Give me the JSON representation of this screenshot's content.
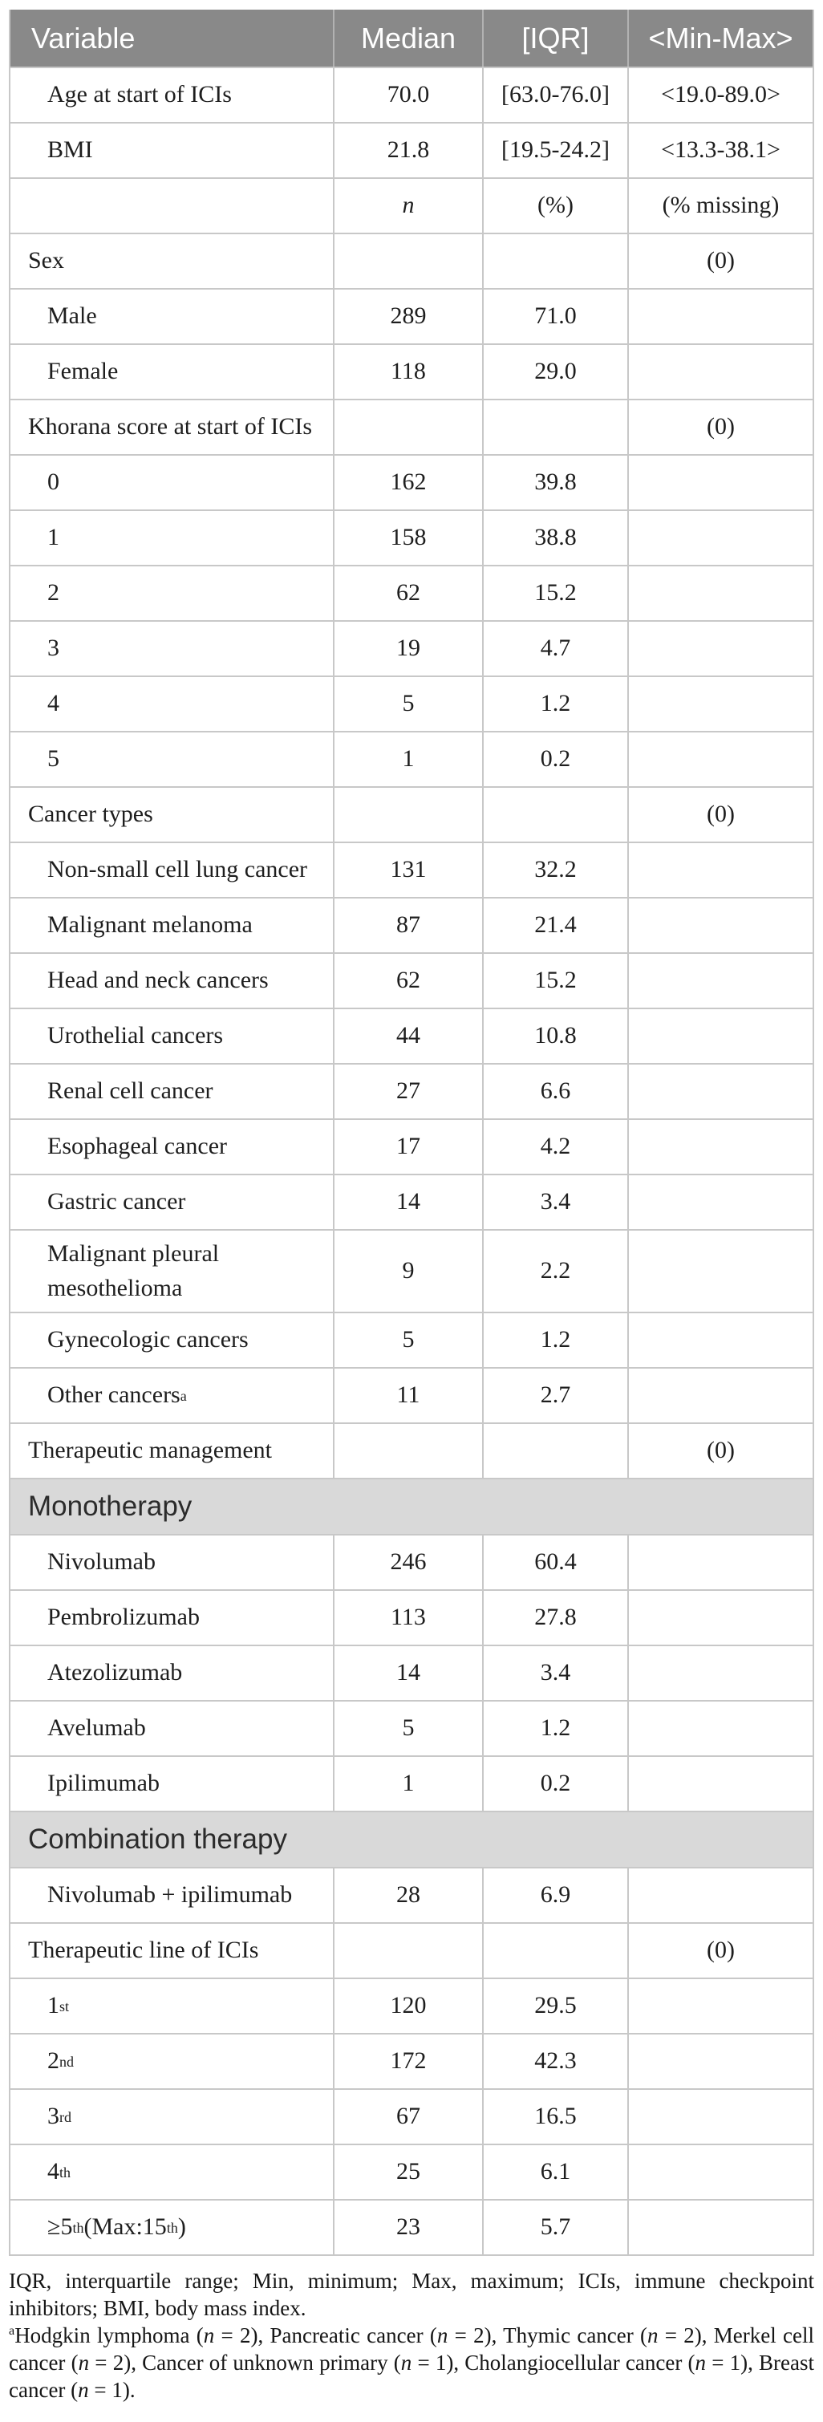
{
  "colors": {
    "header_bg": "#898989",
    "header_text": "#ffffff",
    "banner_bg": "#d9d9d9",
    "grid_line": "#c8c8c8",
    "body_text": "#1e1e1e"
  },
  "header": {
    "variable": "Variable",
    "median": "Median",
    "iqr": "[IQR]",
    "minmax": "<Min-Max>"
  },
  "table": {
    "rows": [
      {
        "indent": 2,
        "label": [
          {
            "t": "Age at start of ICIs"
          }
        ],
        "c2": "70.0",
        "c3": "[63.0-76.0]",
        "c4": "<19.0-89.0>"
      },
      {
        "indent": 2,
        "label": [
          {
            "t": "BMI"
          }
        ],
        "c2": "21.8",
        "c3": "[19.5-24.2]",
        "c4": "<13.3-38.1>"
      },
      {
        "indent": 2,
        "italic": true,
        "label": [],
        "c2": "n",
        "c3": "(%)",
        "c4": "(% missing)"
      },
      {
        "indent": 1,
        "label": [
          {
            "t": "Sex"
          }
        ],
        "c2": "",
        "c3": "",
        "c4": "(0)"
      },
      {
        "indent": 2,
        "label": [
          {
            "t": "Male"
          }
        ],
        "c2": "289",
        "c3": "71.0",
        "c4": ""
      },
      {
        "indent": 2,
        "label": [
          {
            "t": "Female"
          }
        ],
        "c2": "118",
        "c3": "29.0",
        "c4": ""
      },
      {
        "indent": 1,
        "label": [
          {
            "t": "Khorana score at start of ICIs"
          }
        ],
        "c2": "",
        "c3": "",
        "c4": "(0)"
      },
      {
        "indent": 2,
        "label": [
          {
            "t": "0"
          }
        ],
        "c2": "162",
        "c3": "39.8",
        "c4": ""
      },
      {
        "indent": 2,
        "label": [
          {
            "t": "1"
          }
        ],
        "c2": "158",
        "c3": "38.8",
        "c4": ""
      },
      {
        "indent": 2,
        "label": [
          {
            "t": "2"
          }
        ],
        "c2": "62",
        "c3": "15.2",
        "c4": ""
      },
      {
        "indent": 2,
        "label": [
          {
            "t": "3"
          }
        ],
        "c2": "19",
        "c3": "4.7",
        "c4": ""
      },
      {
        "indent": 2,
        "label": [
          {
            "t": "4"
          }
        ],
        "c2": "5",
        "c3": "1.2",
        "c4": ""
      },
      {
        "indent": 2,
        "label": [
          {
            "t": "5"
          }
        ],
        "c2": "1",
        "c3": "0.2",
        "c4": ""
      },
      {
        "indent": 1,
        "label": [
          {
            "t": "Cancer types"
          }
        ],
        "c2": "",
        "c3": "",
        "c4": "(0)"
      },
      {
        "indent": 2,
        "label": [
          {
            "t": "Non-small cell lung cancer"
          }
        ],
        "c2": "131",
        "c3": "32.2",
        "c4": ""
      },
      {
        "indent": 2,
        "label": [
          {
            "t": "Malignant melanoma"
          }
        ],
        "c2": "87",
        "c3": "21.4",
        "c4": ""
      },
      {
        "indent": 2,
        "label": [
          {
            "t": "Head and neck cancers"
          }
        ],
        "c2": "62",
        "c3": "15.2",
        "c4": ""
      },
      {
        "indent": 2,
        "label": [
          {
            "t": "Urothelial cancers"
          }
        ],
        "c2": "44",
        "c3": "10.8",
        "c4": ""
      },
      {
        "indent": 2,
        "label": [
          {
            "t": "Renal cell cancer"
          }
        ],
        "c2": "27",
        "c3": "6.6",
        "c4": ""
      },
      {
        "indent": 2,
        "label": [
          {
            "t": "Esophageal cancer"
          }
        ],
        "c2": "17",
        "c3": "4.2",
        "c4": ""
      },
      {
        "indent": 2,
        "label": [
          {
            "t": "Gastric cancer"
          }
        ],
        "c2": "14",
        "c3": "3.4",
        "c4": ""
      },
      {
        "indent": 2,
        "label": [
          {
            "t": "Malignant pleural mesothelioma"
          }
        ],
        "c2": "9",
        "c3": "2.2",
        "c4": ""
      },
      {
        "indent": 2,
        "label": [
          {
            "t": "Gynecologic cancers"
          }
        ],
        "c2": "5",
        "c3": "1.2",
        "c4": ""
      },
      {
        "indent": 2,
        "label": [
          {
            "t": "Other cancers "
          },
          {
            "sup": "a"
          }
        ],
        "c2": "11",
        "c3": "2.7",
        "c4": ""
      },
      {
        "indent": 1,
        "label": [
          {
            "t": "Therapeutic management"
          }
        ],
        "c2": "",
        "c3": "",
        "c4": "(0)"
      },
      {
        "type": "banner",
        "label": [
          {
            "t": "Monotherapy"
          }
        ]
      },
      {
        "indent": 2,
        "label": [
          {
            "t": "Nivolumab"
          }
        ],
        "c2": "246",
        "c3": "60.4",
        "c4": ""
      },
      {
        "indent": 2,
        "label": [
          {
            "t": "Pembrolizumab"
          }
        ],
        "c2": "113",
        "c3": "27.8",
        "c4": ""
      },
      {
        "indent": 2,
        "label": [
          {
            "t": "Atezolizumab"
          }
        ],
        "c2": "14",
        "c3": "3.4",
        "c4": ""
      },
      {
        "indent": 2,
        "label": [
          {
            "t": "Avelumab"
          }
        ],
        "c2": "5",
        "c3": "1.2",
        "c4": ""
      },
      {
        "indent": 2,
        "label": [
          {
            "t": "Ipilimumab"
          }
        ],
        "c2": "1",
        "c3": "0.2",
        "c4": ""
      },
      {
        "type": "banner",
        "label": [
          {
            "t": "Combination therapy"
          }
        ]
      },
      {
        "indent": 2,
        "label": [
          {
            "t": "Nivolumab + ipilimumab"
          }
        ],
        "c2": "28",
        "c3": "6.9",
        "c4": ""
      },
      {
        "indent": 1,
        "label": [
          {
            "t": "Therapeutic line of ICIs"
          }
        ],
        "c2": "",
        "c3": "",
        "c4": "(0)"
      },
      {
        "indent": 2,
        "label": [
          {
            "t": "1"
          },
          {
            "sup": "st"
          }
        ],
        "c2": "120",
        "c3": "29.5",
        "c4": ""
      },
      {
        "indent": 2,
        "label": [
          {
            "t": "2"
          },
          {
            "sup": "nd"
          }
        ],
        "c2": "172",
        "c3": "42.3",
        "c4": ""
      },
      {
        "indent": 2,
        "label": [
          {
            "t": "3"
          },
          {
            "sup": "rd"
          }
        ],
        "c2": "67",
        "c3": "16.5",
        "c4": ""
      },
      {
        "indent": 2,
        "label": [
          {
            "t": "4"
          },
          {
            "sup": "th"
          }
        ],
        "c2": "25",
        "c3": "6.1",
        "c4": ""
      },
      {
        "indent": 2,
        "label": [
          {
            "t": "≥5"
          },
          {
            "sup": "th"
          },
          {
            "t": " (Max:15"
          },
          {
            "sup": "th"
          },
          {
            "t": ")"
          }
        ],
        "c2": "23",
        "c3": "5.7",
        "c4": ""
      }
    ]
  },
  "footnotes": {
    "abbreviations": [
      {
        "t": "IQR, interquartile range; Min, minimum; Max, maximum; ICIs, immune checkpoint inhibitors; BMI, body mass index."
      }
    ],
    "note_a": [
      {
        "sup": "a"
      },
      {
        "t": "Hodgkin lymphoma ("
      },
      {
        "i": "n"
      },
      {
        "t": " = 2), Pancreatic cancer ("
      },
      {
        "i": "n"
      },
      {
        "t": " = 2), Thymic cancer ("
      },
      {
        "i": "n"
      },
      {
        "t": " = 2), Merkel cell cancer ("
      },
      {
        "i": "n"
      },
      {
        "t": " = 2), Cancer of unknown primary ("
      },
      {
        "i": "n"
      },
      {
        "t": " = 1), Cholangiocellular cancer ("
      },
      {
        "i": "n"
      },
      {
        "t": " = 1), Breast cancer ("
      },
      {
        "i": "n"
      },
      {
        "t": " = 1)."
      }
    ]
  }
}
